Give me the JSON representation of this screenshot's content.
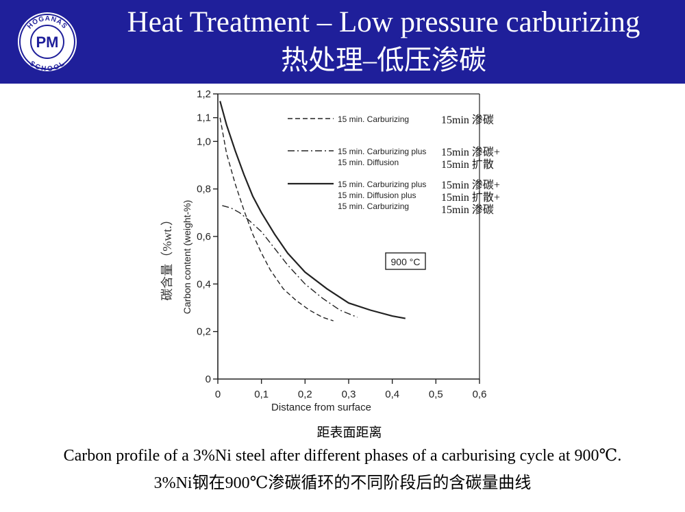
{
  "header": {
    "title_en": "Heat Treatment – Low pressure carburizing",
    "title_cn": "热处理–低压渗碳",
    "logo": {
      "top_text": "HÖGANÄS",
      "bottom_text": "SCHOOL",
      "letters": "PM",
      "icon": "hoganas-pm-school-logo"
    },
    "bg_color": "#1f1f9a"
  },
  "chart_data": {
    "type": "line",
    "xlabel": "Distance from surface",
    "xlabel_cn": "距表面距离",
    "ylabel": "Carbon content (weight-%)",
    "ylabel_cn": "碳含量（%wt.）",
    "xlim": [
      0,
      0.6
    ],
    "ylim": [
      0,
      1.2
    ],
    "x_ticks": [
      "0",
      "0,1",
      "0,2",
      "0,3",
      "0,4",
      "0,5",
      "0,6"
    ],
    "y_ticks": [
      "0",
      "0,2",
      "0,4",
      "0,6",
      "0,8",
      "1,0",
      "1,1",
      "1,2"
    ],
    "annotation": "900 °C",
    "legend": [
      {
        "style": "dashed",
        "label": "15 min. Carburizing",
        "label_cn": [
          "15min 渗碳"
        ]
      },
      {
        "style": "dashdot",
        "label": [
          "15 min. Carburizing plus",
          "15 min. Diffusion"
        ],
        "label_cn": [
          "15min 渗碳+",
          "15min 扩散"
        ]
      },
      {
        "style": "solid",
        "label": [
          "15 min. Carburizing plus",
          "15 min. Diffusion plus",
          "15 min. Carburizing"
        ],
        "label_cn": [
          "15min 渗碳+",
          "15min 扩散+",
          "15min 渗碳"
        ]
      }
    ],
    "series": [
      {
        "name": "15 min. Carburizing",
        "style": "dashed",
        "x": [
          0.005,
          0.02,
          0.04,
          0.06,
          0.08,
          0.1,
          0.12,
          0.15,
          0.18,
          0.21,
          0.24,
          0.265
        ],
        "y": [
          1.1,
          0.95,
          0.82,
          0.71,
          0.61,
          0.53,
          0.46,
          0.38,
          0.33,
          0.29,
          0.26,
          0.245
        ]
      },
      {
        "name": "15 min. Carburizing plus 15 min. Diffusion",
        "style": "dashdot",
        "x": [
          0.01,
          0.03,
          0.05,
          0.07,
          0.1,
          0.13,
          0.16,
          0.2,
          0.24,
          0.28,
          0.32
        ],
        "y": [
          0.73,
          0.72,
          0.7,
          0.67,
          0.62,
          0.55,
          0.48,
          0.4,
          0.34,
          0.29,
          0.26
        ]
      },
      {
        "name": "15 min. Carburizing plus 15 min. Diffusion plus 15 min. Carburizing",
        "style": "solid",
        "x": [
          0.005,
          0.02,
          0.04,
          0.06,
          0.08,
          0.1,
          0.13,
          0.16,
          0.2,
          0.25,
          0.3,
          0.35,
          0.4,
          0.43
        ],
        "y": [
          1.17,
          1.07,
          0.96,
          0.86,
          0.77,
          0.7,
          0.61,
          0.53,
          0.45,
          0.38,
          0.32,
          0.29,
          0.265,
          0.255
        ]
      }
    ]
  },
  "caption": {
    "en": "Carbon profile of a 3%Ni steel after different phases of a carburising cycle at 900℃.",
    "cn": "3%Ni钢在900℃渗碳循环的不同阶段后的含碳量曲线"
  }
}
